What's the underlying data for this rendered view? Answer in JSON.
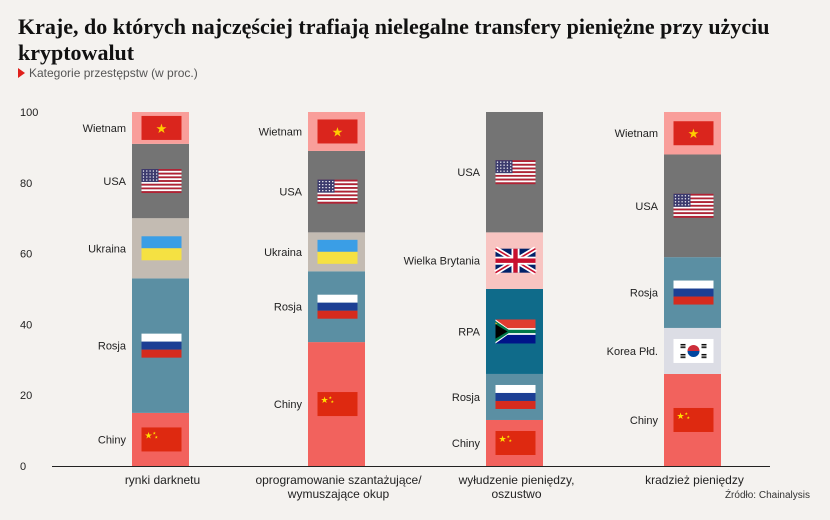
{
  "header": {
    "title": "Kraje, do których najczęściej trafiają nielegalne transfery pieniężne przy użyciu kryptowalut",
    "subtitle": "Kategorie przestępstw (w proc.)"
  },
  "footer": {
    "source": "Źródło: Chainalysis"
  },
  "chart_data": {
    "type": "bar",
    "stacked": true,
    "ylim": [
      0,
      100
    ],
    "yticks": [
      0,
      20,
      40,
      60,
      80,
      100
    ],
    "grid": false,
    "categories": [
      [
        "rynki darknetu"
      ],
      [
        "oprogramowanie szantażujące/",
        "wymuszające okup"
      ],
      [
        "wyłudzenie pieniędzy,",
        "oszustwo"
      ],
      [
        "kradzież pieniędzy"
      ]
    ],
    "bars": [
      {
        "segments": [
          {
            "label": "Chiny",
            "value": 15,
            "color": "#f2625d",
            "flag": "china"
          },
          {
            "label": "Rosja",
            "value": 38,
            "color": "#5b8fa3",
            "flag": "russia"
          },
          {
            "label": "Ukraina",
            "value": 17,
            "color": "#c3bbb2",
            "flag": "ukraine"
          },
          {
            "label": "USA",
            "value": 21,
            "color": "#747474",
            "flag": "usa"
          },
          {
            "label": "Wietnam",
            "value": 9,
            "color": "#f99e9a",
            "flag": "vietnam"
          }
        ]
      },
      {
        "segments": [
          {
            "label": "Chiny",
            "value": 35,
            "color": "#f2625d",
            "flag": "china"
          },
          {
            "label": "Rosja",
            "value": 20,
            "color": "#5b8fa3",
            "flag": "russia"
          },
          {
            "label": "Ukraina",
            "value": 11,
            "color": "#c3bbb2",
            "flag": "ukraine"
          },
          {
            "label": "USA",
            "value": 23,
            "color": "#747474",
            "flag": "usa"
          },
          {
            "label": "Wietnam",
            "value": 11,
            "color": "#f99e9a",
            "flag": "vietnam"
          }
        ]
      },
      {
        "segments": [
          {
            "label": "Chiny",
            "value": 13,
            "color": "#f2625d",
            "flag": "china"
          },
          {
            "label": "Rosja",
            "value": 13,
            "color": "#5b8fa3",
            "flag": "russia"
          },
          {
            "label": "RPA",
            "value": 24,
            "color": "#0f6b8a",
            "flag": "southafrica"
          },
          {
            "label": "Wielka Brytania",
            "value": 16,
            "color": "#f8c4c1",
            "flag": "uk"
          },
          {
            "label": "USA",
            "value": 34,
            "color": "#747474",
            "flag": "usa"
          }
        ]
      },
      {
        "segments": [
          {
            "label": "Chiny",
            "value": 26,
            "color": "#f2625d",
            "flag": "china"
          },
          {
            "label": "Korea Płd.",
            "value": 13,
            "color": "#dcdde5",
            "flag": "korea"
          },
          {
            "label": "Rosja",
            "value": 20,
            "color": "#5b8fa3",
            "flag": "russia"
          },
          {
            "label": "USA",
            "value": 29,
            "color": "#747474",
            "flag": "usa"
          },
          {
            "label": "Wietnam",
            "value": 12,
            "color": "#f99e9a",
            "flag": "vietnam"
          }
        ]
      }
    ]
  }
}
